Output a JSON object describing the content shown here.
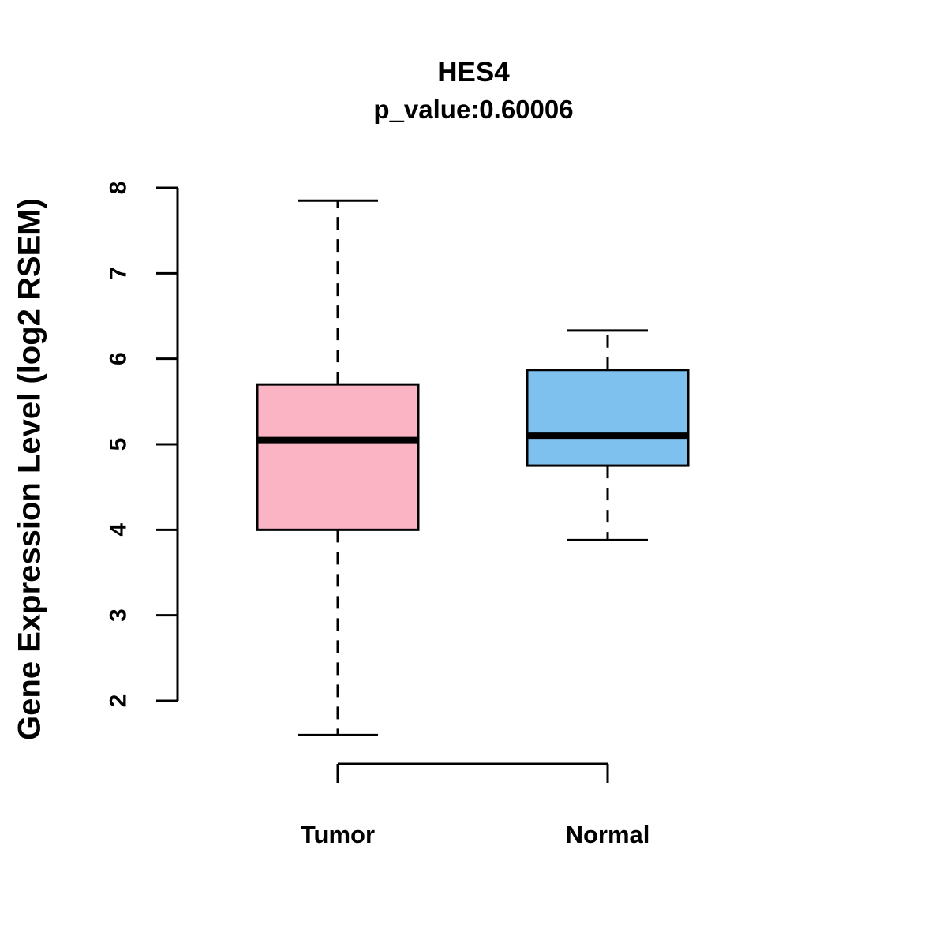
{
  "title": "HES4",
  "subtitle": "p_value:0.60006",
  "y_axis_title": "Gene Expression Level (log2 RSEM)",
  "chart_data": {
    "type": "boxplot",
    "title": "HES4",
    "subtitle": "p_value:0.60006",
    "ylabel": "Gene Expression Level (log2 RSEM)",
    "xlabel": "",
    "ylim": [
      2,
      8
    ],
    "yticks": [
      2,
      3,
      4,
      5,
      6,
      7,
      8
    ],
    "grid": false,
    "categories": [
      "Tumor",
      "Normal"
    ],
    "series": [
      {
        "name": "Tumor",
        "color": "#FBB4C4",
        "min": 1.6,
        "q1": 4.0,
        "median": 5.05,
        "q3": 5.7,
        "max": 7.85
      },
      {
        "name": "Normal",
        "color": "#7EC0EE",
        "min": 3.88,
        "q1": 4.75,
        "median": 5.1,
        "q3": 5.87,
        "max": 6.33
      }
    ]
  }
}
